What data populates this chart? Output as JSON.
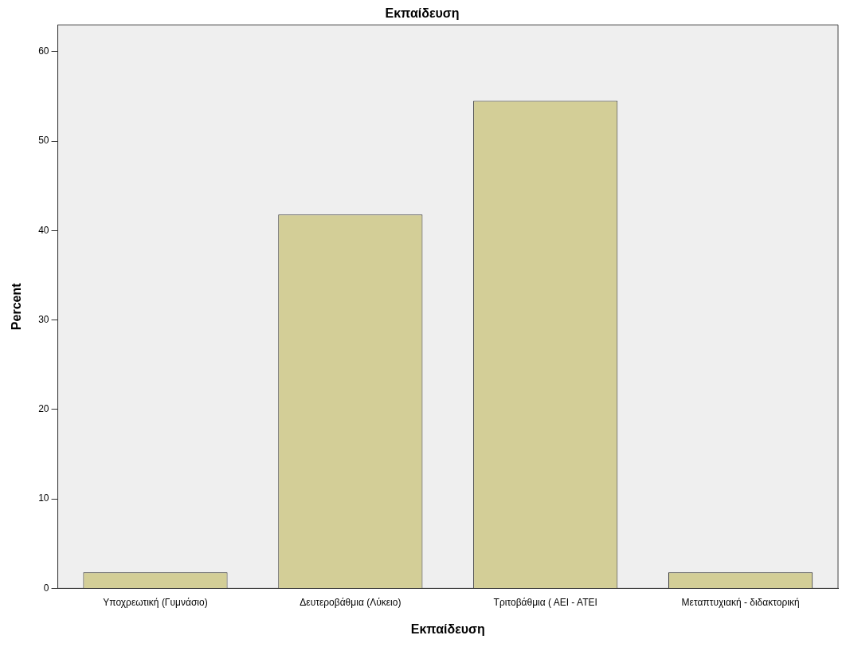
{
  "chart_data": {
    "type": "bar",
    "title": "Εκπαίδευση",
    "xlabel": "Εκπαίδευση",
    "ylabel": "Percent",
    "categories": [
      "Υποχρεωτική (Γυμνάσιο)",
      "Δευτεροβάθμια (Λύκειο)",
      "Τριτοβάθμια ( ΑΕΙ - ΑΤΕΙ",
      "Μεταπτυχιακή - διδακτορική"
    ],
    "values": [
      1.8,
      41.8,
      54.5,
      1.8
    ],
    "color": "#d3ce97",
    "ylim": [
      0,
      63
    ],
    "yticks": [
      0,
      10,
      20,
      30,
      40,
      50,
      60
    ],
    "grid": false,
    "legend": false
  }
}
